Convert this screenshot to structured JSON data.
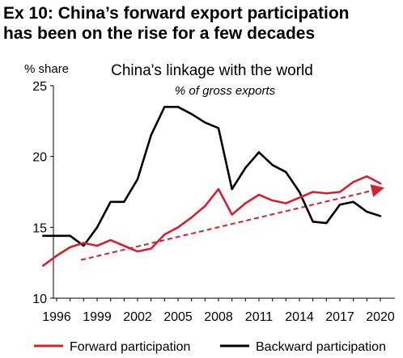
{
  "header": {
    "line1": "Ex 10: China’s forward export participation",
    "line2": "has been on the rise for a few decades"
  },
  "chart_data": {
    "type": "line",
    "title": "China's linkage with the world",
    "subtitle": "% of gross exports",
    "ylabel": "% share",
    "xlabel": "",
    "ylim": [
      10,
      25
    ],
    "yticks": [
      10,
      15,
      20,
      25
    ],
    "xlim": [
      1996,
      2020
    ],
    "xticks": [
      1996,
      1999,
      2002,
      2005,
      2008,
      2011,
      2014,
      2017,
      2020
    ],
    "grid": false,
    "legend_position": "bottom",
    "x": [
      1995,
      1996,
      1997,
      1998,
      1999,
      2000,
      2001,
      2002,
      2003,
      2004,
      2005,
      2006,
      2007,
      2008,
      2009,
      2010,
      2011,
      2012,
      2013,
      2014,
      2015,
      2016,
      2017,
      2018,
      2019,
      2020
    ],
    "series": [
      {
        "name": "Forward participation",
        "color": "#d6202f",
        "values": [
          12.3,
          13.0,
          13.6,
          13.9,
          13.7,
          14.1,
          13.7,
          13.3,
          13.5,
          14.5,
          15.0,
          15.7,
          16.5,
          17.7,
          15.9,
          16.7,
          17.3,
          16.9,
          16.7,
          17.1,
          17.5,
          17.4,
          17.5,
          18.2,
          18.6,
          18.1
        ]
      },
      {
        "name": "Backward participation",
        "color": "#000000",
        "values": [
          14.4,
          14.4,
          14.4,
          13.7,
          15.0,
          16.8,
          16.8,
          18.4,
          21.5,
          23.5,
          23.5,
          23.0,
          22.4,
          22.0,
          17.7,
          19.2,
          20.3,
          19.4,
          18.9,
          17.5,
          15.4,
          15.3,
          16.6,
          16.8,
          16.1,
          15.8
        ]
      }
    ],
    "trend_arrow": {
      "color": "#d6202f",
      "from": [
        1997.8,
        12.7
      ],
      "to": [
        2020.3,
        17.8
      ]
    }
  }
}
